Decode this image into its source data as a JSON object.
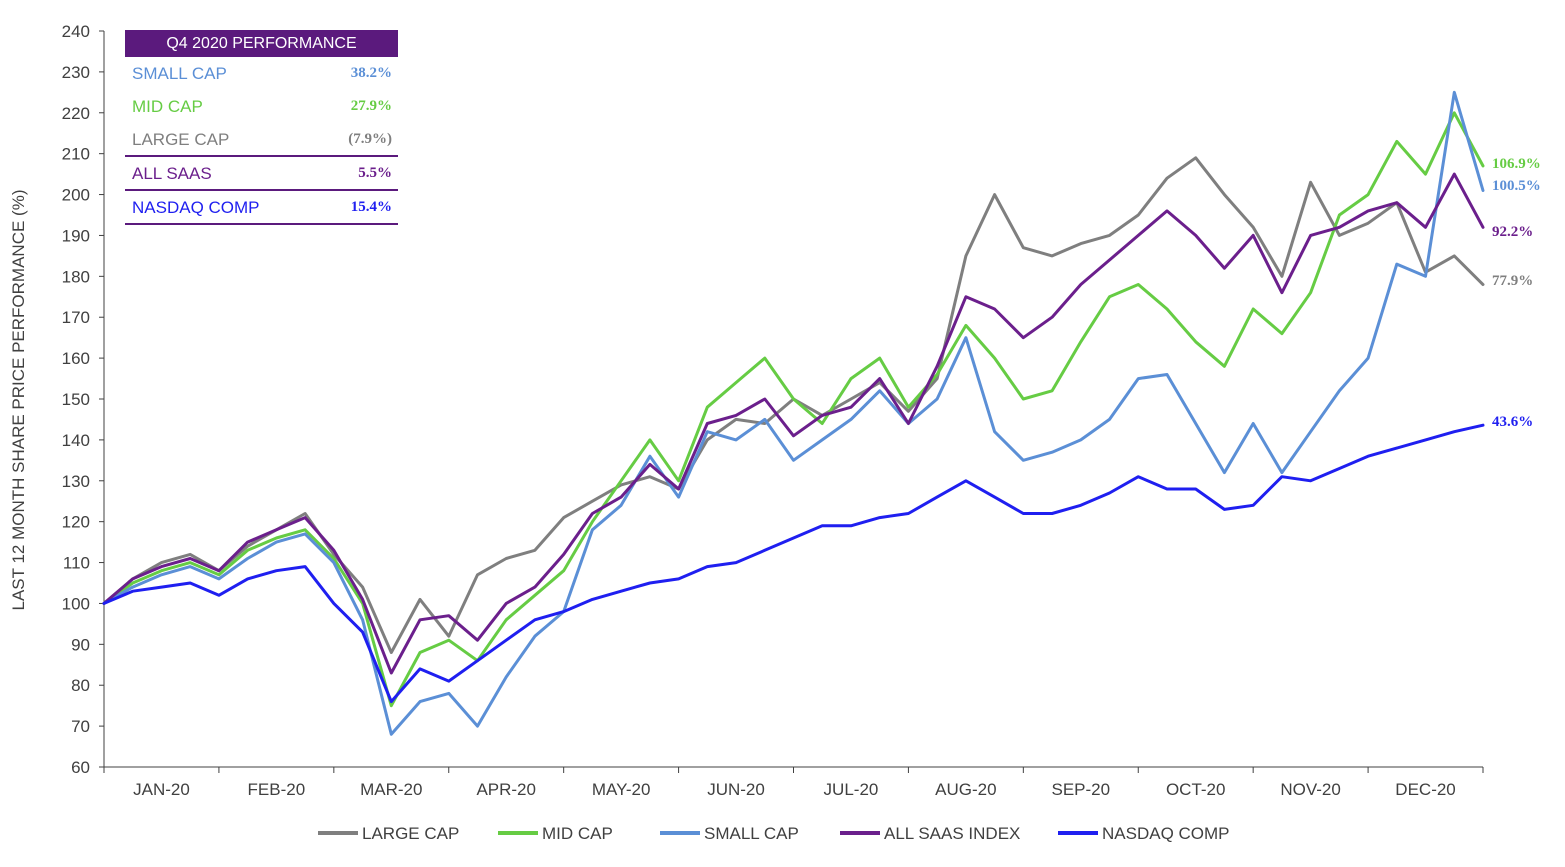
{
  "chart_data": {
    "type": "line",
    "ylabel": "LAST 12 MONTH SHARE PRICE PERFORMANCE (%)",
    "xlabel": "",
    "ylim": [
      60,
      240
    ],
    "yticks": [
      60,
      70,
      80,
      90,
      100,
      110,
      120,
      130,
      140,
      150,
      160,
      170,
      180,
      190,
      200,
      210,
      220,
      230,
      240
    ],
    "months": [
      "JAN-20",
      "FEB-20",
      "MAR-20",
      "APR-20",
      "MAY-20",
      "JUN-20",
      "JUL-20",
      "AUG-20",
      "SEP-20",
      "OCT-20",
      "NOV-20",
      "DEC-20"
    ],
    "x_points": 49,
    "legend_position": "bottom",
    "series": [
      {
        "name": "LARGE CAP",
        "color": "#7f7f7f",
        "end_label": "77.9%",
        "values": [
          100,
          106,
          110,
          112,
          108,
          114,
          118,
          122,
          112,
          104,
          88,
          101,
          92,
          107,
          111,
          113,
          121,
          125,
          129,
          131,
          128,
          140,
          145,
          144,
          150,
          146,
          150,
          154,
          147,
          155,
          185,
          200,
          187,
          185,
          188,
          190,
          195,
          204,
          209,
          200,
          192,
          180,
          203,
          190,
          193,
          198,
          181,
          185,
          178
        ]
      },
      {
        "name": "MID CAP",
        "color": "#66cc44",
        "end_label": "106.9%",
        "values": [
          100,
          105,
          108,
          110,
          107,
          113,
          116,
          118,
          111,
          100,
          75,
          88,
          91,
          86,
          96,
          102,
          108,
          120,
          130,
          140,
          130,
          148,
          154,
          160,
          150,
          144,
          155,
          160,
          148,
          156,
          168,
          160,
          150,
          152,
          164,
          175,
          178,
          172,
          164,
          158,
          172,
          166,
          176,
          195,
          200,
          213,
          205,
          220,
          207
        ]
      },
      {
        "name": "SMALL CAP",
        "color": "#5b8fd6",
        "end_label": "100.5%",
        "values": [
          100,
          104,
          107,
          109,
          106,
          111,
          115,
          117,
          110,
          96,
          68,
          76,
          78,
          70,
          82,
          92,
          98,
          118,
          124,
          136,
          126,
          142,
          140,
          145,
          135,
          140,
          145,
          152,
          144,
          150,
          165,
          142,
          135,
          137,
          140,
          145,
          155,
          156,
          144,
          132,
          144,
          132,
          142,
          152,
          160,
          183,
          180,
          225,
          201
        ]
      },
      {
        "name": "ALL SAAS INDEX",
        "color": "#6b1f8c",
        "end_label": "92.2%",
        "values": [
          100,
          106,
          109,
          111,
          108,
          115,
          118,
          121,
          113,
          101,
          83,
          96,
          97,
          91,
          100,
          104,
          112,
          122,
          126,
          134,
          128,
          144,
          146,
          150,
          141,
          146,
          148,
          155,
          144,
          158,
          175,
          172,
          165,
          170,
          178,
          184,
          190,
          196,
          190,
          182,
          190,
          176,
          190,
          192,
          196,
          198,
          192,
          205,
          192
        ]
      },
      {
        "name": "NASDAQ COMP",
        "color": "#1f1ff0",
        "end_label": "43.6%",
        "values": [
          100,
          103,
          104,
          105,
          102,
          106,
          108,
          109,
          100,
          93,
          76,
          84,
          81,
          86,
          91,
          96,
          98,
          101,
          103,
          105,
          106,
          109,
          110,
          113,
          116,
          119,
          119,
          121,
          122,
          126,
          130,
          126,
          122,
          122,
          124,
          127,
          131,
          128,
          128,
          123,
          124,
          131,
          130,
          133,
          136,
          138,
          140,
          142,
          143.6
        ]
      }
    ]
  },
  "table": {
    "header": "Q4 2020 PERFORMANCE",
    "rows": [
      {
        "name": "SMALL CAP",
        "value": "38.2%",
        "color": "#5b8fd6"
      },
      {
        "name": "MID CAP",
        "value": "27.9%",
        "color": "#66cc44"
      },
      {
        "name": "LARGE CAP",
        "value": "(7.9%)",
        "color": "#7f7f7f"
      },
      {
        "name": "ALL SAAS",
        "value": "5.5%",
        "color": "#6b1f8c"
      },
      {
        "name": "NASDAQ COMP",
        "value": "15.4%",
        "color": "#1f1ff0"
      }
    ]
  },
  "colors": {
    "table_header_bg": "#5b1a7d",
    "axis": "#404040"
  }
}
